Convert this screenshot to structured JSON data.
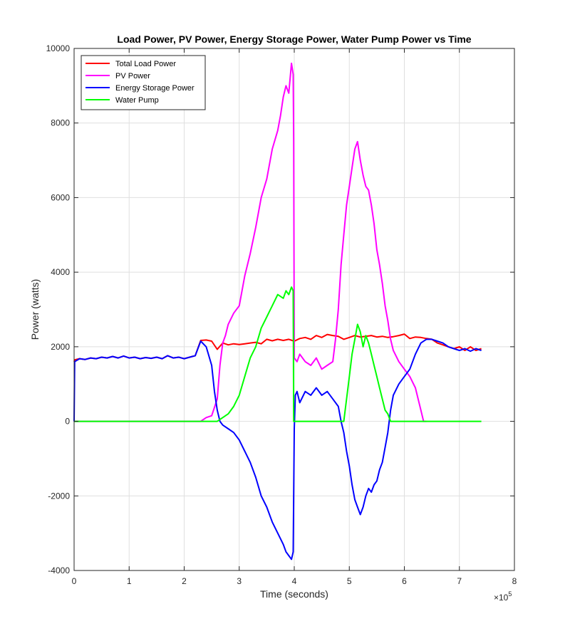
{
  "chart_data": {
    "type": "line",
    "title": "Load Power, PV Power, Energy Storage Power, Water Pump Power vs Time",
    "xlabel": "Time (seconds)",
    "ylabel": "Power (watts)",
    "x_multiplier": "× 10^5",
    "x_multiplier_base": "×10",
    "x_multiplier_exp": "5",
    "xlim": [
      0,
      8
    ],
    "ylim": [
      -4000,
      10000
    ],
    "xticks": [
      0,
      1,
      2,
      3,
      4,
      5,
      6,
      7,
      8
    ],
    "yticks": [
      -4000,
      -2000,
      0,
      2000,
      4000,
      6000,
      8000,
      10000
    ],
    "x_tick_labels": [
      "0",
      "1",
      "2",
      "3",
      "4",
      "5",
      "6",
      "7",
      "8"
    ],
    "y_tick_labels": [
      "-4000",
      "-2000",
      "0",
      "2000",
      "4000",
      "6000",
      "8000",
      "10000"
    ],
    "grid": true,
    "legend_position": "top-left",
    "series": [
      {
        "name": "Total Load Power",
        "color": "#ff0000",
        "x": [
          0,
          0.01,
          0.1,
          0.2,
          0.3,
          0.4,
          0.5,
          0.6,
          0.7,
          0.8,
          0.9,
          1.0,
          1.1,
          1.2,
          1.3,
          1.4,
          1.5,
          1.6,
          1.7,
          1.8,
          1.9,
          2.0,
          2.1,
          2.2,
          2.3,
          2.4,
          2.5,
          2.6,
          2.7,
          2.8,
          2.9,
          3.0,
          3.1,
          3.2,
          3.3,
          3.4,
          3.5,
          3.6,
          3.7,
          3.8,
          3.9,
          4.0,
          4.1,
          4.2,
          4.3,
          4.4,
          4.5,
          4.6,
          4.7,
          4.8,
          4.9,
          5.0,
          5.1,
          5.2,
          5.3,
          5.4,
          5.5,
          5.6,
          5.7,
          5.8,
          5.9,
          6.0,
          6.1,
          6.2,
          6.3,
          6.4,
          6.5,
          6.6,
          6.7,
          6.8,
          6.9,
          7.0,
          7.1,
          7.2,
          7.3,
          7.4
        ],
        "y": [
          1600,
          1650,
          1680,
          1660,
          1700,
          1680,
          1720,
          1700,
          1740,
          1700,
          1750,
          1700,
          1720,
          1680,
          1710,
          1690,
          1720,
          1680,
          1760,
          1700,
          1720,
          1680,
          1720,
          1760,
          2170,
          2180,
          2150,
          1930,
          2100,
          2050,
          2080,
          2060,
          2080,
          2100,
          2120,
          2080,
          2200,
          2160,
          2200,
          2170,
          2200,
          2150,
          2220,
          2250,
          2200,
          2300,
          2250,
          2330,
          2300,
          2280,
          2200,
          2250,
          2300,
          2260,
          2280,
          2300,
          2260,
          2280,
          2250,
          2270,
          2300,
          2340,
          2220,
          2260,
          2250,
          2220,
          2200,
          2100,
          2050,
          2000,
          1950,
          2000,
          1900,
          2000,
          1900,
          1950
        ]
      },
      {
        "name": "PV Power",
        "color": "#ff00ff",
        "x": [
          0,
          2.3,
          2.4,
          2.5,
          2.6,
          2.65,
          2.7,
          2.75,
          2.8,
          2.9,
          3.0,
          3.1,
          3.2,
          3.3,
          3.4,
          3.5,
          3.6,
          3.7,
          3.75,
          3.8,
          3.85,
          3.9,
          3.95,
          3.98,
          3.99,
          4.0,
          4.05,
          4.1,
          4.2,
          4.3,
          4.4,
          4.5,
          4.6,
          4.7,
          4.75,
          4.8,
          4.85,
          4.9,
          4.95,
          5.0,
          5.05,
          5.1,
          5.15,
          5.2,
          5.25,
          5.3,
          5.35,
          5.4,
          5.45,
          5.5,
          5.55,
          5.6,
          5.65,
          5.7,
          5.75,
          5.8,
          5.9,
          6.0,
          6.1,
          6.2,
          6.3,
          6.35,
          6.4
        ],
        "y": [
          0,
          0,
          100,
          150,
          600,
          1500,
          2100,
          2300,
          2600,
          2900,
          3100,
          3900,
          4500,
          5200,
          6000,
          6500,
          7300,
          7800,
          8200,
          8700,
          9000,
          8800,
          9600,
          9300,
          7500,
          1700,
          1600,
          1800,
          1600,
          1500,
          1700,
          1400,
          1500,
          1600,
          2200,
          3000,
          4200,
          5000,
          5800,
          6300,
          6800,
          7300,
          7500,
          7000,
          6600,
          6300,
          6200,
          5800,
          5300,
          4600,
          4200,
          3700,
          3100,
          2700,
          2200,
          1900,
          1600,
          1400,
          1200,
          900,
          300,
          0,
          0
        ]
      },
      {
        "name": "Energy Storage Power",
        "color": "#0000ff",
        "x": [
          0,
          0.01,
          0.1,
          0.2,
          0.3,
          0.4,
          0.5,
          0.6,
          0.7,
          0.8,
          0.9,
          1.0,
          1.1,
          1.2,
          1.3,
          1.4,
          1.5,
          1.6,
          1.7,
          1.8,
          1.9,
          2.0,
          2.1,
          2.2,
          2.3,
          2.4,
          2.5,
          2.55,
          2.6,
          2.65,
          2.7,
          2.8,
          2.9,
          3.0,
          3.1,
          3.2,
          3.3,
          3.4,
          3.5,
          3.6,
          3.7,
          3.8,
          3.85,
          3.9,
          3.95,
          3.98,
          4.0,
          4.02,
          4.05,
          4.1,
          4.2,
          4.3,
          4.4,
          4.5,
          4.6,
          4.7,
          4.8,
          4.85,
          4.9,
          4.95,
          5.0,
          5.05,
          5.1,
          5.15,
          5.2,
          5.25,
          5.3,
          5.35,
          5.4,
          5.45,
          5.5,
          5.55,
          5.6,
          5.65,
          5.7,
          5.75,
          5.8,
          5.9,
          6.0,
          6.1,
          6.2,
          6.3,
          6.4,
          6.5,
          6.6,
          6.7,
          6.8,
          6.9,
          7.0,
          7.1,
          7.2,
          7.3,
          7.4
        ],
        "y": [
          0,
          1600,
          1680,
          1660,
          1700,
          1680,
          1720,
          1700,
          1740,
          1700,
          1750,
          1700,
          1720,
          1680,
          1710,
          1690,
          1720,
          1680,
          1760,
          1700,
          1720,
          1680,
          1720,
          1760,
          2150,
          2000,
          1500,
          800,
          300,
          0,
          -100,
          -200,
          -300,
          -500,
          -800,
          -1100,
          -1500,
          -2000,
          -2300,
          -2700,
          -3000,
          -3300,
          -3500,
          -3600,
          -3700,
          -3500,
          -200,
          700,
          800,
          500,
          800,
          700,
          900,
          700,
          800,
          600,
          400,
          0,
          -300,
          -800,
          -1200,
          -1700,
          -2100,
          -2300,
          -2500,
          -2300,
          -2000,
          -1800,
          -1900,
          -1700,
          -1600,
          -1300,
          -1100,
          -700,
          -300,
          300,
          700,
          1000,
          1200,
          1400,
          1800,
          2100,
          2200,
          2200,
          2150,
          2100,
          2000,
          1950,
          1900,
          1950,
          1880,
          1950,
          1900
        ]
      },
      {
        "name": "Water Pump",
        "color": "#00ff00",
        "x": [
          0,
          2.6,
          2.7,
          2.8,
          2.9,
          3.0,
          3.1,
          3.2,
          3.3,
          3.4,
          3.5,
          3.6,
          3.7,
          3.8,
          3.85,
          3.9,
          3.95,
          3.98,
          3.99,
          4.0,
          4.5,
          4.9,
          4.95,
          5.0,
          5.05,
          5.1,
          5.15,
          5.2,
          5.25,
          5.3,
          5.35,
          5.4,
          5.45,
          5.5,
          5.55,
          5.6,
          5.65,
          5.7,
          5.75,
          7.4
        ],
        "y": [
          0,
          0,
          100,
          200,
          400,
          700,
          1200,
          1700,
          2000,
          2500,
          2800,
          3100,
          3400,
          3300,
          3500,
          3400,
          3600,
          3500,
          0,
          0,
          0,
          0,
          600,
          1200,
          1800,
          2200,
          2600,
          2400,
          2000,
          2300,
          2100,
          1800,
          1500,
          1200,
          900,
          600,
          300,
          200,
          0,
          0
        ]
      }
    ]
  }
}
